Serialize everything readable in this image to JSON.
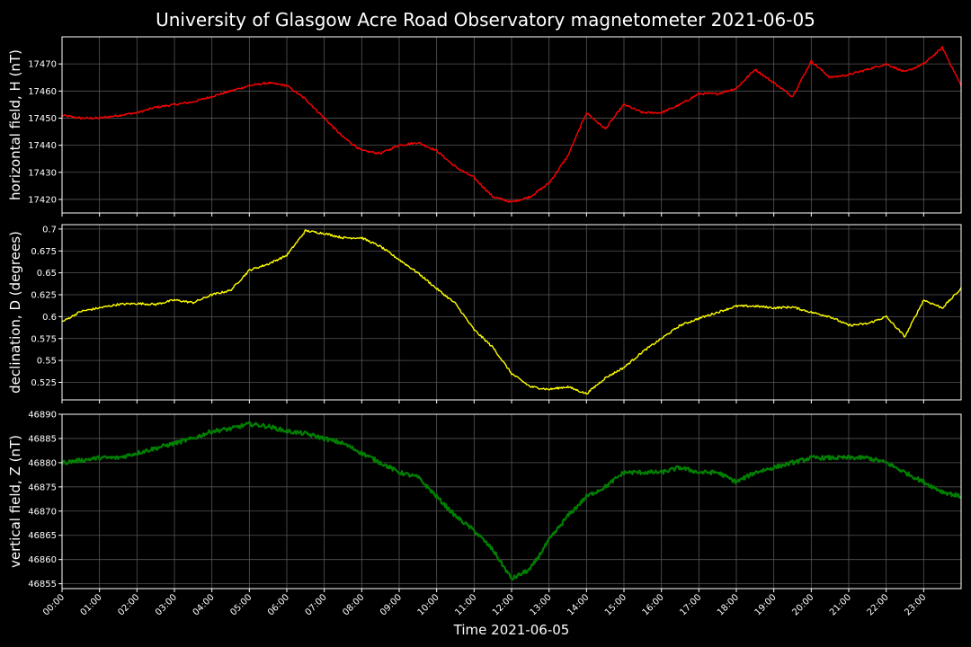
{
  "chart_data": {
    "title": "University of Glasgow Acre Road Observatory magnetometer 2021-06-05",
    "xlabel": "Time 2021-06-05",
    "type": "line",
    "grid": true,
    "x_hours": [
      0,
      0.5,
      1,
      1.5,
      2,
      2.5,
      3,
      3.5,
      4,
      4.5,
      5,
      5.5,
      6,
      6.5,
      7,
      7.5,
      8,
      8.5,
      9,
      9.5,
      10,
      10.5,
      11,
      11.5,
      12,
      12.5,
      13,
      13.5,
      14,
      14.5,
      15,
      15.5,
      16,
      16.5,
      17,
      17.5,
      18,
      18.5,
      19,
      19.5,
      20,
      20.5,
      21,
      21.5,
      22,
      22.5,
      23,
      23.5,
      24
    ],
    "x_tick_labels": [
      "00:00",
      "01:00",
      "02:00",
      "03:00",
      "04:00",
      "05:00",
      "06:00",
      "07:00",
      "08:00",
      "09:00",
      "10:00",
      "11:00",
      "12:00",
      "13:00",
      "14:00",
      "15:00",
      "16:00",
      "17:00",
      "18:00",
      "19:00",
      "20:00",
      "21:00",
      "22:00",
      "23:00"
    ],
    "panels": [
      {
        "ylabel": "horizontal field, H (nT)",
        "color": "#ff0000",
        "ylim": [
          17415,
          17480
        ],
        "yticks": [
          17420,
          17430,
          17440,
          17450,
          17460,
          17470
        ],
        "values": [
          17451,
          17450,
          17450,
          17451,
          17452,
          17454,
          17455,
          17456,
          17458,
          17460,
          17462,
          17463,
          17462,
          17457,
          17450,
          17443,
          17438,
          17437,
          17440,
          17441,
          17438,
          17432,
          17428,
          17421,
          17419,
          17421,
          17426,
          17436,
          17452,
          17446,
          17455,
          17452,
          17452,
          17455,
          17459,
          17459,
          17461,
          17468,
          17463,
          17458,
          17471,
          17465,
          17466,
          17468,
          17470,
          17467,
          17470,
          17476,
          17462
        ]
      },
      {
        "ylabel": "declination, D (degrees)",
        "color": "#ffff00",
        "ylim": [
          0.505,
          0.705
        ],
        "yticks": [
          0.525,
          0.55,
          0.575,
          0.6,
          0.625,
          0.65,
          0.675,
          0.7
        ],
        "values": [
          0.594,
          0.606,
          0.61,
          0.614,
          0.615,
          0.614,
          0.619,
          0.616,
          0.625,
          0.63,
          0.653,
          0.66,
          0.67,
          0.698,
          0.695,
          0.69,
          0.69,
          0.68,
          0.665,
          0.65,
          0.632,
          0.615,
          0.585,
          0.565,
          0.535,
          0.52,
          0.517,
          0.52,
          0.512,
          0.53,
          0.542,
          0.56,
          0.575,
          0.59,
          0.598,
          0.605,
          0.612,
          0.612,
          0.61,
          0.611,
          0.605,
          0.6,
          0.59,
          0.592,
          0.6,
          0.577,
          0.619,
          0.61,
          0.632
        ]
      },
      {
        "ylabel": "vertical field, Z (nT)",
        "color": "#008000",
        "ylim": [
          46854,
          46890
        ],
        "yticks": [
          46855,
          46860,
          46865,
          46870,
          46875,
          46880,
          46885,
          46890
        ],
        "values": [
          46880,
          46880.5,
          46881,
          46881,
          46882,
          46883,
          46884,
          46885,
          46886.5,
          46887,
          46888,
          46887.5,
          46886.5,
          46886,
          46885,
          46884,
          46882,
          46880,
          46878,
          46877,
          46873,
          46869,
          46866,
          46862,
          46856,
          46858,
          46864,
          46869,
          46873,
          46875,
          46878,
          46878,
          46878,
          46879,
          46878,
          46878,
          46876,
          46878,
          46879,
          46880,
          46881,
          46881,
          46881,
          46881,
          46880,
          46878,
          46876,
          46874,
          46873
        ]
      }
    ]
  }
}
